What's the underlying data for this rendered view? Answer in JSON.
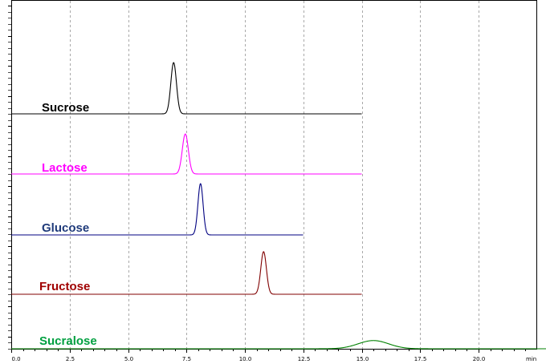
{
  "chart_data": {
    "type": "line",
    "title": "",
    "xlabel": "",
    "ylabel": "",
    "x_unit": "min",
    "xlim": [
      0,
      23.4
    ],
    "x_ticks": [
      0.0,
      2.5,
      5.0,
      7.5,
      10.0,
      12.5,
      15.0,
      17.5,
      20.0
    ],
    "x_tick_labels": [
      "0.0",
      "2.5",
      "5.0",
      "7.5",
      "10.0",
      "12.5",
      "15.0",
      "17.5",
      "20.0"
    ],
    "grid": "vertical dashed",
    "series": [
      {
        "name": "Sucrose",
        "color": "#000000",
        "x_end": 15.0,
        "peak_x": 6.95,
        "peak_height": 1.0,
        "peak_width": 0.12
      },
      {
        "name": "Lactose",
        "color": "#ff00ff",
        "x_end": 15.0,
        "peak_x": 7.45,
        "peak_height": 0.78,
        "peak_width": 0.13
      },
      {
        "name": "Glucose",
        "color": "#000080",
        "x_end": 12.5,
        "peak_x": 8.1,
        "peak_height": 1.0,
        "peak_width": 0.11
      },
      {
        "name": "Fructose",
        "color": "#800000",
        "x_end": 15.0,
        "peak_x": 10.8,
        "peak_height": 0.83,
        "peak_width": 0.12
      },
      {
        "name": "Sucralose",
        "color": "#008000",
        "x_end": 23.4,
        "peak_x": 15.5,
        "peak_height": 0.16,
        "peak_width": 0.65
      }
    ]
  }
}
